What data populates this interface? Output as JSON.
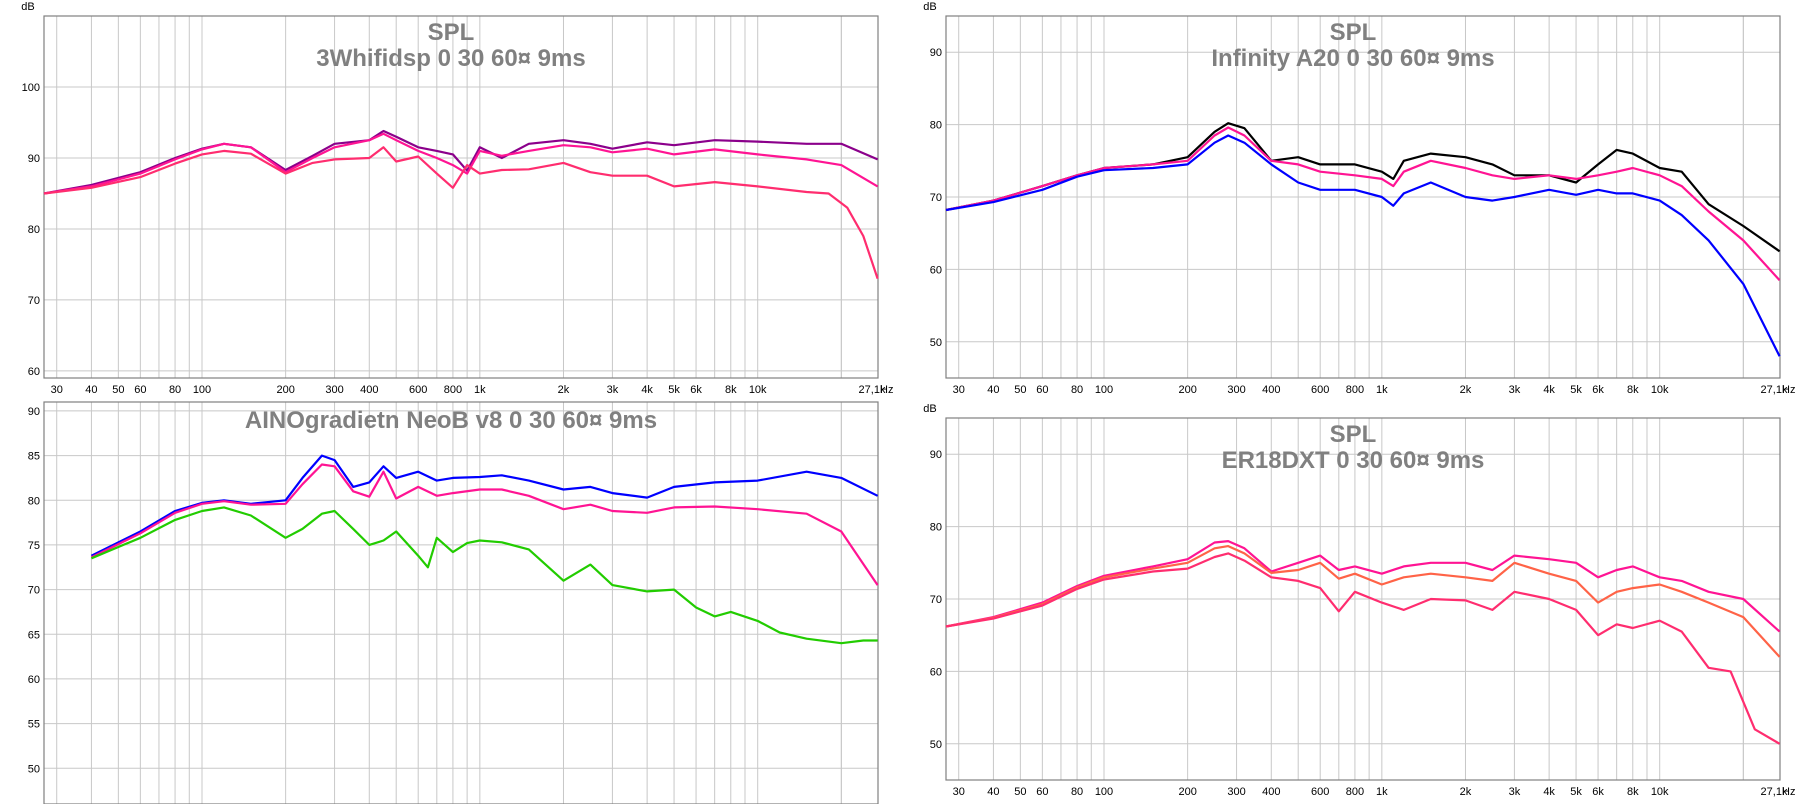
{
  "chart_data": [
    {
      "type": "line",
      "title": "SPL",
      "subtitle": "3Whifidsp 0 30 60¤ 9ms",
      "ylabel": "dB",
      "xlabel": "Hz",
      "x_scale": "log",
      "xlim": [
        27,
        27100
      ],
      "ylim": [
        59,
        110
      ],
      "yticks": [
        60,
        70,
        80,
        90,
        100
      ],
      "grid": true,
      "series": [
        {
          "color": "#8B008B",
          "x": [
            27,
            40,
            60,
            80,
            100,
            120,
            150,
            200,
            250,
            300,
            400,
            450,
            500,
            600,
            700,
            800,
            900,
            1000,
            1200,
            1500,
            2000,
            2500,
            3000,
            4000,
            5000,
            7000,
            10000,
            15000,
            20000,
            27000
          ],
          "y": [
            85,
            86.2,
            88,
            90,
            91.3,
            92,
            91.5,
            88.3,
            90.3,
            92,
            92.5,
            93.8,
            93,
            91.5,
            91,
            90.5,
            88.2,
            91.5,
            90,
            92,
            92.5,
            92,
            91.3,
            92.2,
            91.8,
            92.5,
            92.3,
            92,
            92,
            89.8
          ]
        },
        {
          "color": "#FF1493",
          "x": [
            27,
            40,
            60,
            80,
            100,
            120,
            150,
            200,
            250,
            300,
            400,
            450,
            500,
            600,
            700,
            800,
            900,
            1000,
            1200,
            1500,
            2000,
            2500,
            3000,
            4000,
            5000,
            7000,
            10000,
            15000,
            20000,
            27000
          ],
          "y": [
            85,
            86,
            87.8,
            89.8,
            91.2,
            92,
            91.5,
            88,
            90,
            91.5,
            92.5,
            93.4,
            92.5,
            91,
            90,
            89,
            87.8,
            91,
            90.3,
            91,
            91.8,
            91.5,
            90.8,
            91.3,
            90.5,
            91.2,
            90.5,
            89.8,
            89,
            86
          ]
        },
        {
          "color": "#FF2D6F",
          "x": [
            27,
            40,
            60,
            80,
            100,
            120,
            150,
            200,
            250,
            300,
            400,
            450,
            500,
            600,
            700,
            800,
            900,
            1000,
            1200,
            1500,
            2000,
            2500,
            3000,
            4000,
            5000,
            7000,
            10000,
            15000,
            18000,
            21000,
            24000,
            27000
          ],
          "y": [
            85,
            85.8,
            87.3,
            89.2,
            90.5,
            91,
            90.6,
            87.8,
            89.3,
            89.8,
            90,
            91.5,
            89.5,
            90.2,
            87.8,
            85.8,
            89,
            87.8,
            88.3,
            88.4,
            89.3,
            88,
            87.5,
            87.5,
            86,
            86.6,
            86,
            85.2,
            85,
            83,
            79,
            73
          ]
        }
      ]
    },
    {
      "type": "line",
      "title": "SPL",
      "subtitle": "Infinity A20 0 30 60¤ 9ms",
      "ylabel": "dB",
      "xlabel": "Hz",
      "x_scale": "log",
      "xlim": [
        27,
        27100
      ],
      "ylim": [
        45,
        95
      ],
      "yticks": [
        50,
        60,
        70,
        80,
        90
      ],
      "grid": true,
      "series": [
        {
          "color": "#000000",
          "x": [
            27,
            40,
            60,
            80,
            100,
            150,
            200,
            250,
            280,
            320,
            400,
            500,
            600,
            800,
            1000,
            1100,
            1200,
            1500,
            2000,
            2500,
            3000,
            4000,
            5000,
            6000,
            7000,
            8000,
            10000,
            12000,
            15000,
            20000,
            27000
          ],
          "y": [
            68.2,
            69.5,
            71.5,
            73,
            74,
            74.5,
            75.5,
            79,
            80.2,
            79.5,
            75,
            75.5,
            74.5,
            74.5,
            73.5,
            72.5,
            75,
            76,
            75.5,
            74.5,
            73,
            73,
            72,
            74.5,
            76.5,
            76,
            74,
            73.5,
            69,
            66,
            62.5
          ]
        },
        {
          "color": "#FF1493",
          "x": [
            27,
            40,
            60,
            80,
            100,
            150,
            200,
            250,
            280,
            320,
            400,
            500,
            600,
            800,
            1000,
            1100,
            1200,
            1500,
            2000,
            2500,
            3000,
            4000,
            5000,
            6000,
            7000,
            8000,
            10000,
            12000,
            15000,
            20000,
            27000
          ],
          "y": [
            68.2,
            69.5,
            71.5,
            73,
            74,
            74.5,
            75,
            78.5,
            79.6,
            78.5,
            75,
            74.5,
            73.5,
            73,
            72.5,
            71.5,
            73.5,
            75,
            74,
            73,
            72.5,
            73,
            72.5,
            73,
            73.5,
            74,
            73,
            71.5,
            68,
            64,
            58.5
          ]
        },
        {
          "color": "#0000FF",
          "x": [
            27,
            40,
            60,
            80,
            100,
            150,
            200,
            250,
            280,
            320,
            400,
            500,
            600,
            800,
            1000,
            1100,
            1200,
            1500,
            2000,
            2500,
            3000,
            4000,
            5000,
            6000,
            7000,
            8000,
            10000,
            12000,
            15000,
            20000,
            27000
          ],
          "y": [
            68.2,
            69.3,
            71,
            72.8,
            73.7,
            74,
            74.5,
            77.5,
            78.5,
            77.5,
            74.5,
            72,
            71,
            71,
            70,
            68.8,
            70.5,
            72,
            70,
            69.5,
            70,
            71,
            70.3,
            71,
            70.5,
            70.5,
            69.5,
            67.5,
            64,
            58,
            48
          ]
        }
      ]
    },
    {
      "type": "line",
      "title": "",
      "subtitle": "AINOgradietn NeoB v8 0 30 60¤ 9ms",
      "ylabel": "",
      "xlabel": "",
      "x_scale": "log",
      "xlim": [
        27,
        27100
      ],
      "ylim": [
        46,
        91
      ],
      "yticks": [
        50,
        55,
        60,
        65,
        70,
        75,
        80,
        85,
        90
      ],
      "grid": true,
      "series": [
        {
          "color": "#0000FF",
          "x": [
            40,
            60,
            80,
            100,
            120,
            150,
            200,
            230,
            270,
            300,
            350,
            400,
            450,
            500,
            600,
            700,
            800,
            1000,
            1200,
            1500,
            2000,
            2500,
            3000,
            4000,
            5000,
            7000,
            10000,
            15000,
            20000,
            27000
          ],
          "y": [
            73.8,
            76.5,
            78.8,
            79.7,
            80,
            79.6,
            80,
            82.5,
            85,
            84.5,
            81.5,
            82,
            83.8,
            82.5,
            83.2,
            82.2,
            82.5,
            82.6,
            82.8,
            82.2,
            81.2,
            81.5,
            80.8,
            80.3,
            81.5,
            82,
            82.2,
            83.2,
            82.5,
            80.5
          ]
        },
        {
          "color": "#FF1493",
          "x": [
            40,
            60,
            80,
            100,
            120,
            150,
            200,
            230,
            270,
            300,
            350,
            400,
            450,
            500,
            600,
            700,
            800,
            1000,
            1200,
            1500,
            2000,
            2500,
            3000,
            4000,
            5000,
            7000,
            10000,
            15000,
            20000,
            27000
          ],
          "y": [
            73.6,
            76.3,
            78.6,
            79.6,
            79.9,
            79.5,
            79.6,
            81.8,
            84,
            83.8,
            81,
            80.4,
            83.2,
            80.2,
            81.5,
            80.5,
            80.8,
            81.2,
            81.2,
            80.5,
            79,
            79.5,
            78.8,
            78.6,
            79.2,
            79.3,
            79,
            78.5,
            76.5,
            70.5
          ]
        },
        {
          "color": "#22CC00",
          "x": [
            40,
            60,
            80,
            100,
            120,
            150,
            200,
            230,
            270,
            300,
            350,
            400,
            450,
            500,
            600,
            650,
            700,
            800,
            900,
            1000,
            1200,
            1500,
            2000,
            2500,
            3000,
            4000,
            5000,
            6000,
            7000,
            8000,
            10000,
            12000,
            15000,
            20000,
            24000,
            27000
          ],
          "y": [
            73.5,
            75.8,
            77.8,
            78.8,
            79.2,
            78.3,
            75.8,
            76.8,
            78.5,
            78.8,
            76.8,
            75,
            75.5,
            76.5,
            73.8,
            72.5,
            75.8,
            74.2,
            75.2,
            75.5,
            75.3,
            74.5,
            71,
            72.8,
            70.5,
            69.8,
            70,
            68,
            67,
            67.5,
            66.5,
            65.2,
            64.5,
            64,
            64.3,
            64.3
          ]
        }
      ]
    },
    {
      "type": "line",
      "title": "SPL",
      "subtitle": "ER18DXT 0 30 60¤ 9ms",
      "ylabel": "dB",
      "xlabel": "Hz",
      "x_scale": "log",
      "xlim": [
        27,
        27100
      ],
      "ylim": [
        45,
        95
      ],
      "yticks": [
        50,
        60,
        70,
        80,
        90
      ],
      "grid": true,
      "series": [
        {
          "color": "#FF1493",
          "x": [
            27,
            40,
            60,
            80,
            100,
            150,
            200,
            250,
            280,
            320,
            400,
            500,
            600,
            700,
            800,
            1000,
            1200,
            1500,
            2000,
            2500,
            3000,
            4000,
            5000,
            6000,
            7000,
            8000,
            10000,
            12000,
            15000,
            20000,
            27000
          ],
          "y": [
            66.2,
            67.5,
            69.5,
            71.8,
            73.2,
            74.5,
            75.5,
            77.8,
            78,
            77,
            73.8,
            75,
            76,
            74,
            74.5,
            73.5,
            74.5,
            75,
            75,
            74,
            76,
            75.5,
            75,
            73,
            74,
            74.5,
            73,
            72.5,
            71,
            70,
            65.5
          ]
        },
        {
          "color": "#FF6347",
          "x": [
            27,
            40,
            60,
            80,
            100,
            150,
            200,
            250,
            280,
            320,
            400,
            500,
            600,
            700,
            800,
            1000,
            1200,
            1500,
            2000,
            2500,
            3000,
            4000,
            5000,
            6000,
            7000,
            8000,
            10000,
            12000,
            15000,
            20000,
            27000
          ],
          "y": [
            66.2,
            67.4,
            69.3,
            71.6,
            73,
            74.2,
            75,
            77,
            77.3,
            76.3,
            73.6,
            74,
            75,
            72.8,
            73.5,
            72,
            73,
            73.5,
            73,
            72.5,
            75,
            73.5,
            72.5,
            69.5,
            71,
            71.5,
            72,
            71,
            69.5,
            67.5,
            62
          ]
        },
        {
          "color": "#FF2D6F",
          "x": [
            27,
            40,
            60,
            80,
            100,
            150,
            200,
            250,
            280,
            320,
            400,
            500,
            600,
            700,
            800,
            1000,
            1200,
            1500,
            2000,
            2500,
            3000,
            4000,
            5000,
            6000,
            7000,
            8000,
            10000,
            12000,
            15000,
            18000,
            22000,
            27000
          ],
          "y": [
            66.2,
            67.3,
            69.1,
            71.4,
            72.7,
            73.8,
            74.2,
            75.8,
            76.3,
            75.3,
            73,
            72.5,
            71.5,
            68.3,
            71,
            69.5,
            68.5,
            70,
            69.8,
            68.5,
            71,
            70,
            68.5,
            65,
            66.5,
            66,
            67,
            65.5,
            60.5,
            60,
            52,
            50
          ]
        }
      ]
    }
  ],
  "x_ticks": [
    {
      "v": 30,
      "label": "30"
    },
    {
      "v": 40,
      "label": "40"
    },
    {
      "v": 50,
      "label": "50"
    },
    {
      "v": 60,
      "label": "60"
    },
    {
      "v": 80,
      "label": "80"
    },
    {
      "v": 100,
      "label": "100"
    },
    {
      "v": 200,
      "label": "200"
    },
    {
      "v": 300,
      "label": "300"
    },
    {
      "v": 400,
      "label": "400"
    },
    {
      "v": 600,
      "label": "600"
    },
    {
      "v": 800,
      "label": "800"
    },
    {
      "v": 1000,
      "label": "1k"
    },
    {
      "v": 2000,
      "label": "2k"
    },
    {
      "v": 3000,
      "label": "3k"
    },
    {
      "v": 4000,
      "label": "4k"
    },
    {
      "v": 5000,
      "label": "5k"
    },
    {
      "v": 6000,
      "label": "6k"
    },
    {
      "v": 8000,
      "label": "8k"
    },
    {
      "v": 10000,
      "label": "10k"
    }
  ],
  "x_end_label": "27,1k",
  "unit_hz": "Hz",
  "unit_db": "dB"
}
